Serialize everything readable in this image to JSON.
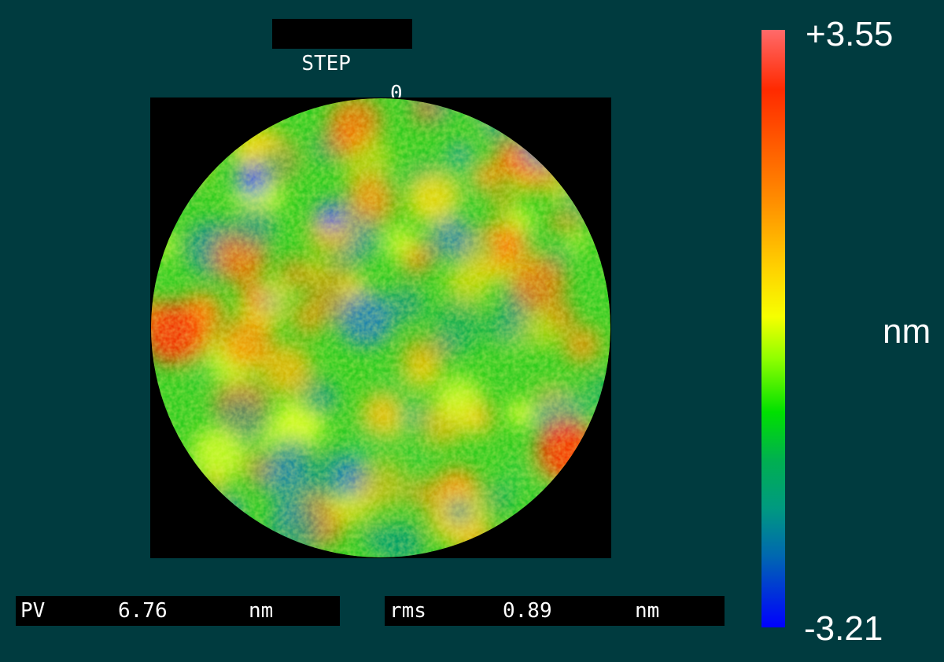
{
  "step": {
    "label": "STEP",
    "value": "0"
  },
  "pv": {
    "label": "PV",
    "value": "6.76",
    "unit": "nm"
  },
  "rms": {
    "label": "rms",
    "value": "0.89",
    "unit": "nm"
  },
  "colorbar": {
    "max": "+3.55",
    "min": "-3.21",
    "unit": "nm"
  },
  "colors": {
    "background": "#003b3f",
    "frame": "#000000",
    "scale_high": "#ff2a00",
    "scale_mid": "#f6ff00",
    "scale_low": "#0000ff"
  }
}
